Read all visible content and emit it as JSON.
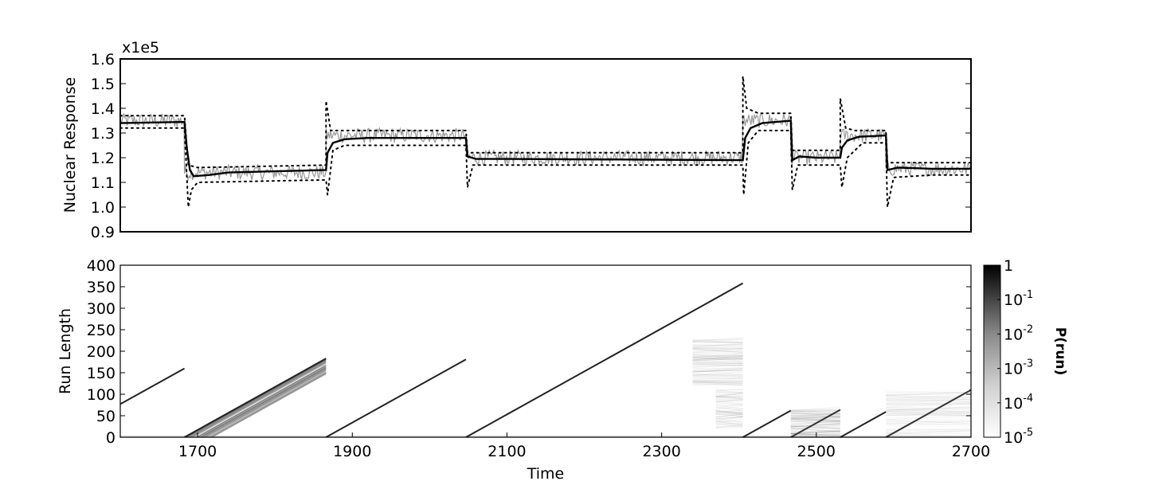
{
  "chart_data": [
    {
      "type": "line",
      "ylabel": "Nuclear Response",
      "scale_label": "x1e5",
      "xlim": [
        1600,
        2700
      ],
      "ylim": [
        0.9,
        1.6
      ],
      "y_ticks": [
        "0.9",
        "1.0",
        "1.1",
        "1.2",
        "1.3",
        "1.4",
        "1.5",
        "1.6"
      ],
      "series": [
        {
          "style": "gray-noisy",
          "color": "#999999",
          "segments": [
            {
              "x": [
                1600,
                1683
              ],
              "mean": 1.35,
              "noise": 0.03
            },
            {
              "x": [
                1683,
                1866
              ],
              "mean": 1.14,
              "noise": 0.03
            },
            {
              "x": [
                1866,
                2047
              ],
              "mean": 1.29,
              "noise": 0.03
            },
            {
              "x": [
                2047,
                2405
              ],
              "mean": 1.2,
              "noise": 0.03
            },
            {
              "x": [
                2405,
                2467
              ],
              "mean": 1.35,
              "noise": 0.03
            },
            {
              "x": [
                2467,
                2531
              ],
              "mean": 1.2,
              "noise": 0.03
            },
            {
              "x": [
                2531,
                2590
              ],
              "mean": 1.29,
              "noise": 0.03
            },
            {
              "x": [
                2590,
                2700
              ],
              "mean": 1.155,
              "noise": 0.03
            }
          ]
        },
        {
          "style": "solid",
          "color": "#000000",
          "points": [
            [
              1600,
              1.34
            ],
            [
              1683,
              1.345
            ],
            [
              1686,
              1.24
            ],
            [
              1690,
              1.15
            ],
            [
              1695,
              1.125
            ],
            [
              1715,
              1.13
            ],
            [
              1740,
              1.14
            ],
            [
              1800,
              1.145
            ],
            [
              1866,
              1.15
            ],
            [
              1868,
              1.22
            ],
            [
              1875,
              1.26
            ],
            [
              1890,
              1.275
            ],
            [
              1920,
              1.28
            ],
            [
              2047,
              1.28
            ],
            [
              2049,
              1.205
            ],
            [
              2060,
              1.195
            ],
            [
              2100,
              1.195
            ],
            [
              2405,
              1.19
            ],
            [
              2408,
              1.28
            ],
            [
              2415,
              1.32
            ],
            [
              2430,
              1.34
            ],
            [
              2467,
              1.35
            ],
            [
              2469,
              1.19
            ],
            [
              2478,
              1.205
            ],
            [
              2500,
              1.2
            ],
            [
              2531,
              1.2
            ],
            [
              2533,
              1.24
            ],
            [
              2540,
              1.27
            ],
            [
              2555,
              1.285
            ],
            [
              2590,
              1.29
            ],
            [
              2592,
              1.15
            ],
            [
              2605,
              1.16
            ],
            [
              2650,
              1.155
            ],
            [
              2700,
              1.155
            ]
          ]
        },
        {
          "style": "dotted-upper",
          "color": "#000000",
          "points": [
            [
              1600,
              1.37
            ],
            [
              1683,
              1.37
            ],
            [
              1688,
              1.17
            ],
            [
              1700,
              1.16
            ],
            [
              1866,
              1.17
            ],
            [
              1866,
              1.43
            ],
            [
              1872,
              1.31
            ],
            [
              1890,
              1.31
            ],
            [
              2047,
              1.31
            ],
            [
              2049,
              1.22
            ],
            [
              2060,
              1.22
            ],
            [
              2405,
              1.22
            ],
            [
              2405,
              1.53
            ],
            [
              2410,
              1.4
            ],
            [
              2425,
              1.38
            ],
            [
              2467,
              1.38
            ],
            [
              2469,
              1.23
            ],
            [
              2480,
              1.23
            ],
            [
              2531,
              1.23
            ],
            [
              2531,
              1.44
            ],
            [
              2538,
              1.32
            ],
            [
              2550,
              1.31
            ],
            [
              2590,
              1.31
            ],
            [
              2592,
              1.18
            ],
            [
              2610,
              1.18
            ],
            [
              2700,
              1.18
            ]
          ]
        },
        {
          "style": "dotted-lower",
          "color": "#000000",
          "points": [
            [
              1600,
              1.32
            ],
            [
              1683,
              1.32
            ],
            [
              1688,
              1.0
            ],
            [
              1692,
              1.07
            ],
            [
              1700,
              1.1
            ],
            [
              1866,
              1.11
            ],
            [
              1868,
              1.05
            ],
            [
              1875,
              1.23
            ],
            [
              1890,
              1.25
            ],
            [
              2047,
              1.25
            ],
            [
              2049,
              1.08
            ],
            [
              2056,
              1.17
            ],
            [
              2070,
              1.17
            ],
            [
              2405,
              1.17
            ],
            [
              2406,
              1.05
            ],
            [
              2412,
              1.26
            ],
            [
              2425,
              1.31
            ],
            [
              2467,
              1.31
            ],
            [
              2469,
              1.07
            ],
            [
              2476,
              1.17
            ],
            [
              2531,
              1.17
            ],
            [
              2533,
              1.08
            ],
            [
              2540,
              1.2
            ],
            [
              2560,
              1.26
            ],
            [
              2590,
              1.26
            ],
            [
              2592,
              1.0
            ],
            [
              2600,
              1.12
            ],
            [
              2650,
              1.13
            ],
            [
              2700,
              1.13
            ]
          ]
        }
      ]
    },
    {
      "type": "heatmap",
      "xlabel": "Time",
      "ylabel": "Run Length",
      "xlim": [
        1600,
        2700
      ],
      "ylim": [
        0,
        400
      ],
      "x_ticks": [
        "1700",
        "1900",
        "2100",
        "2300",
        "2500",
        "2700"
      ],
      "y_ticks": [
        "0",
        "50",
        "100",
        "150",
        "200",
        "250",
        "300",
        "350",
        "400"
      ],
      "colorbar": {
        "label": "P(run)",
        "scale": "log",
        "ticks": [
          {
            "base": "1",
            "exp": ""
          },
          {
            "base": "10",
            "exp": "-1"
          },
          {
            "base": "10",
            "exp": "-2"
          },
          {
            "base": "10",
            "exp": "-3"
          },
          {
            "base": "10",
            "exp": "-4"
          },
          {
            "base": "10",
            "exp": "-5"
          }
        ]
      },
      "run_lines": [
        {
          "x": [
            1600,
            1683
          ],
          "y": [
            77,
            160
          ],
          "shade": "#222222"
        },
        {
          "x": [
            1683,
            1866
          ],
          "y": [
            0,
            183
          ],
          "shade": "#222222"
        },
        {
          "x": [
            1866,
            2047
          ],
          "y": [
            0,
            181
          ],
          "shade": "#222222"
        },
        {
          "x": [
            2047,
            2405
          ],
          "y": [
            0,
            358
          ],
          "shade": "#222222"
        },
        {
          "x": [
            2405,
            2467
          ],
          "y": [
            0,
            62
          ],
          "shade": "#222222"
        },
        {
          "x": [
            2467,
            2531
          ],
          "y": [
            0,
            64
          ],
          "shade": "#333333"
        },
        {
          "x": [
            2531,
            2590
          ],
          "y": [
            0,
            59
          ],
          "shade": "#222222"
        },
        {
          "x": [
            2590,
            2700
          ],
          "y": [
            0,
            110
          ],
          "shade": "#333333"
        }
      ],
      "diffuse_regions": [
        {
          "x": [
            1683,
            1866
          ],
          "run_from": 0,
          "run_to": 183,
          "intensity": 0.55
        },
        {
          "x": [
            2340,
            2405
          ],
          "run_from": 120,
          "run_to": 230,
          "intensity": 0.25
        },
        {
          "x": [
            2370,
            2405
          ],
          "run_from": 20,
          "run_to": 110,
          "intensity": 0.18
        },
        {
          "x": [
            2467,
            2531
          ],
          "run_from": 0,
          "run_to": 64,
          "intensity": 0.25
        },
        {
          "x": [
            2590,
            2700
          ],
          "run_from": 0,
          "run_to": 110,
          "intensity": 0.15
        }
      ]
    }
  ]
}
